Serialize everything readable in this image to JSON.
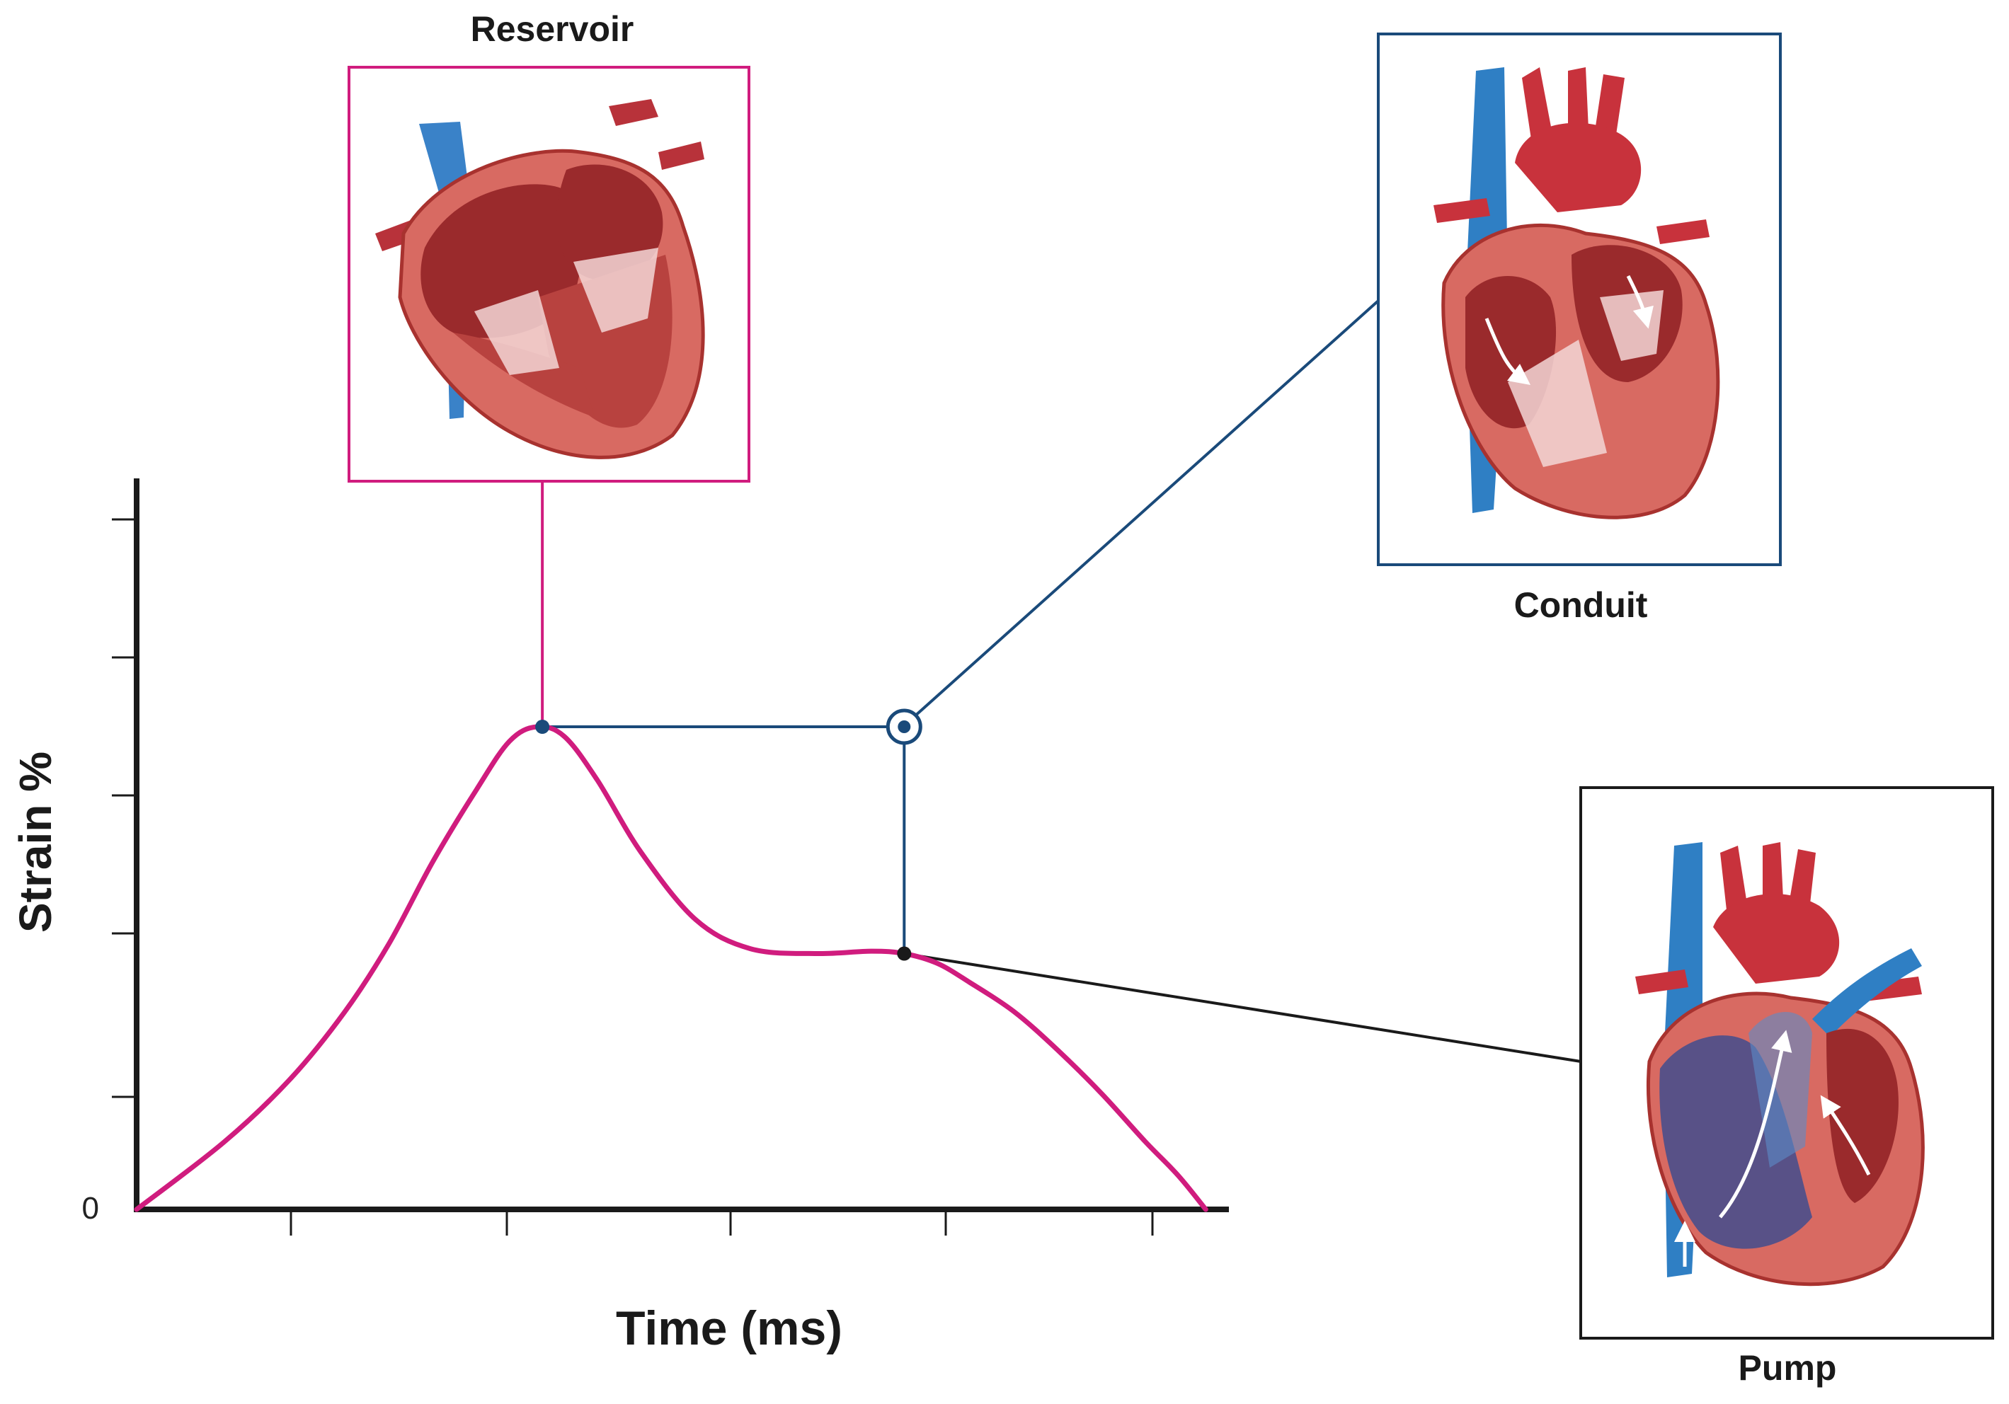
{
  "colors": {
    "reservoir": "#d01c7e",
    "conduit": "#1a4a7a",
    "pump": "#1a1a1a",
    "axis": "#1a1a1a",
    "heart_red": "#c8323c",
    "heart_muscle": "#e07a6e",
    "vessel_blue": "#2f7fc4"
  },
  "panels": {
    "reservoir": {
      "label": "Reservoir",
      "icon": "heart-cross-section-icon"
    },
    "conduit": {
      "label": "Conduit",
      "icon": "heart-flow-icon"
    },
    "pump": {
      "label": "Pump",
      "icon": "heart-pump-icon"
    }
  },
  "chart_data": {
    "type": "line",
    "title": "",
    "xlabel": "Time (ms)",
    "ylabel": "Strain %",
    "xlim": [
      0,
      100
    ],
    "ylim": [
      0,
      100
    ],
    "x_tick_count": 5,
    "y_tick_count": 5,
    "y_tick_labels": [
      "0"
    ],
    "grid": false,
    "series": [
      {
        "x": [
          0,
          8,
          14,
          19,
          23,
          27,
          31,
          34,
          36.5,
          39,
          42,
          46,
          51,
          56,
          62,
          67,
          70,
          73,
          76,
          80,
          84,
          88,
          92,
          95,
          97.5
        ],
        "values": [
          0,
          14,
          27,
          41,
          55,
          72,
          87,
          97,
          100,
          98,
          89,
          74,
          60,
          54,
          53,
          53.5,
          53,
          51,
          47,
          41,
          33,
          24,
          14,
          7,
          0
        ]
      }
    ],
    "markers": [
      {
        "name": "reservoir-peak",
        "x": 37,
        "y": 100
      },
      {
        "name": "conduit-point",
        "x": 70,
        "y": 53
      }
    ]
  }
}
